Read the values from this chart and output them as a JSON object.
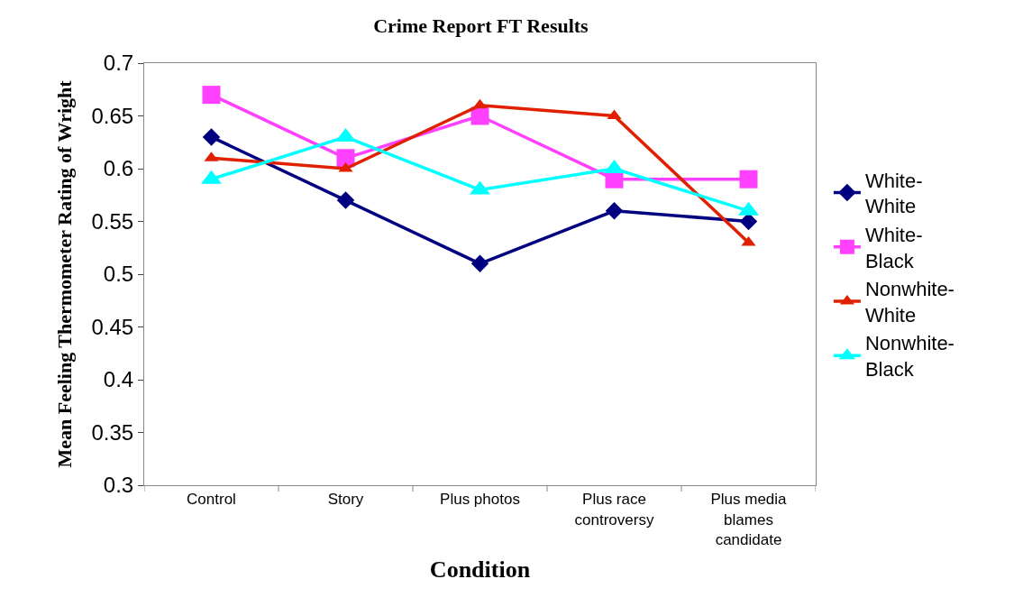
{
  "chart_data": {
    "type": "line",
    "title": "Crime Report FT Results",
    "xlabel": "Condition",
    "ylabel": "Mean Feeling Thermometer Rating of Wright",
    "categories": [
      "Control",
      "Story",
      "Plus photos",
      "Plus race\ncontroversy",
      "Plus media\nblames\ncandidate"
    ],
    "series": [
      {
        "name": "White-\nWhite",
        "color": "#000080",
        "marker": "diamond",
        "values": [
          0.63,
          0.57,
          0.51,
          0.56,
          0.55
        ]
      },
      {
        "name": "White-\nBlack",
        "color": "#ff40ff",
        "marker": "square",
        "values": [
          0.67,
          0.61,
          0.65,
          0.59,
          0.59
        ]
      },
      {
        "name": "Nonwhite-\nWhite",
        "color": "#e02000",
        "marker": "triangle",
        "values": [
          0.61,
          0.6,
          0.66,
          0.65,
          0.53
        ]
      },
      {
        "name": "Nonwhite-\nBlack",
        "color": "#00ffff",
        "marker": "triangle",
        "values": [
          0.59,
          0.63,
          0.58,
          0.6,
          0.56
        ]
      }
    ],
    "ylim": [
      0.3,
      0.7
    ],
    "yticks": [
      0.3,
      0.35,
      0.4,
      0.45,
      0.5,
      0.55,
      0.6,
      0.65,
      0.7
    ],
    "legend": "right",
    "line_style": "solid"
  }
}
